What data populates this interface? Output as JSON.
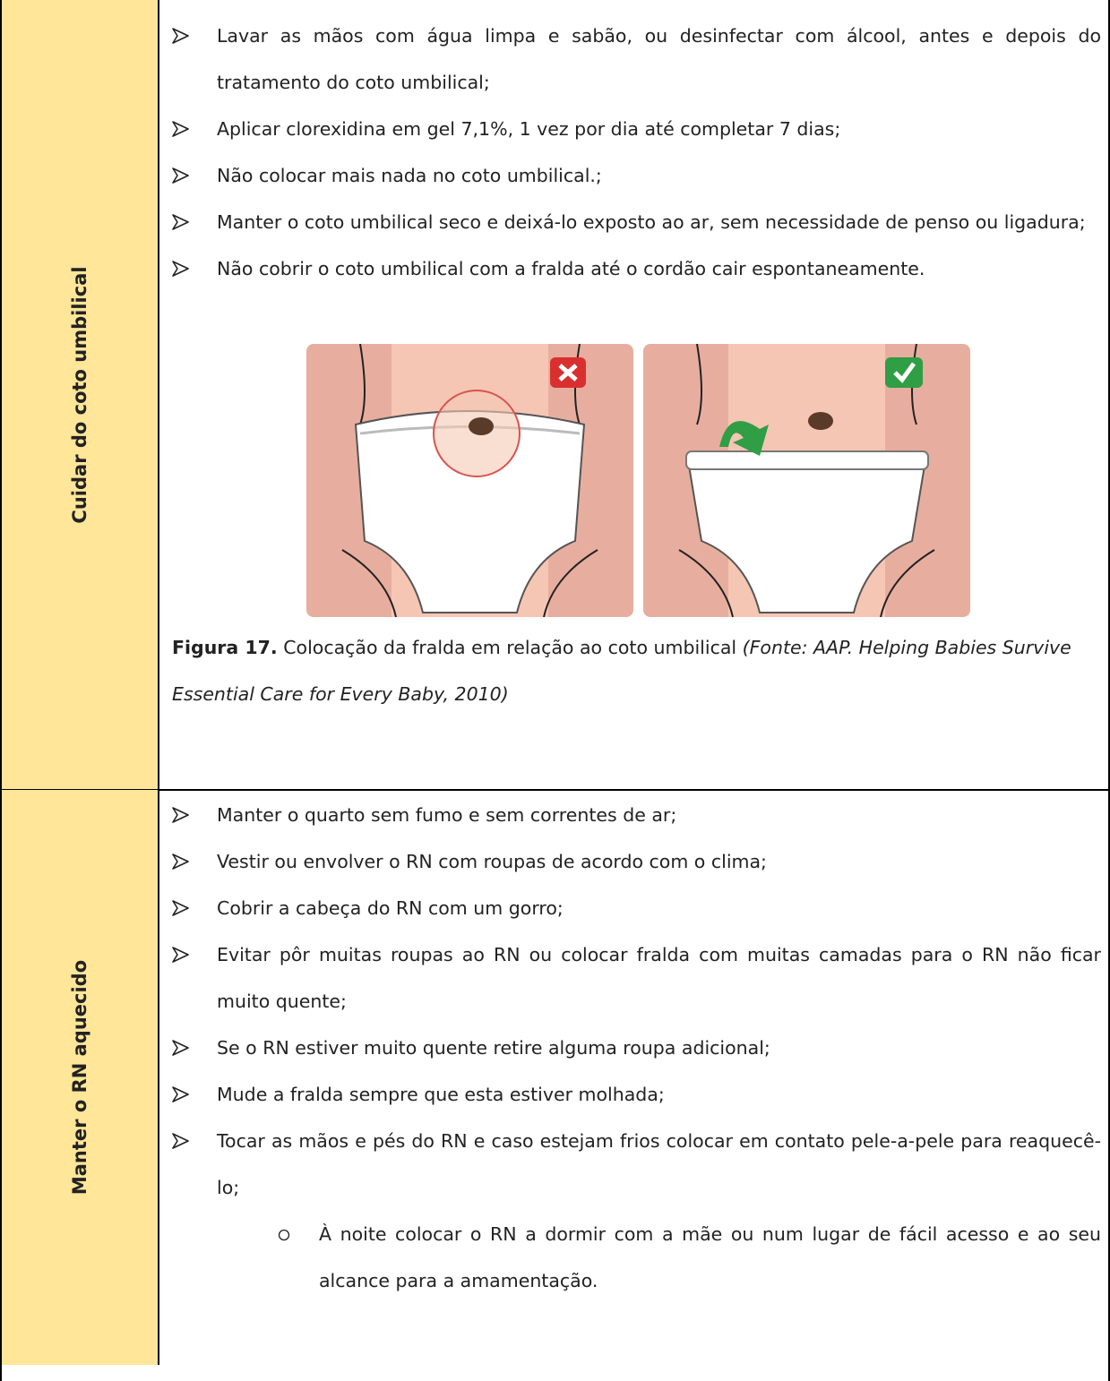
{
  "sections": [
    {
      "label": "Cuidar do coto umbilical",
      "items": [
        {
          "text": "Lavar as mãos com água limpa e sabão, ou desinfectar com álcool, antes e depois do tratamento do coto umbilical;"
        },
        {
          "text": "Aplicar clorexidina em gel 7,1%, 1 vez por dia até completar 7 dias;"
        },
        {
          "text": "Não colocar mais nada no coto umbilical.;"
        },
        {
          "text": "Manter o coto umbilical seco e deixá-lo exposto ao ar, sem necessidade de penso ou ligadura;"
        },
        {
          "text": "Não cobrir o coto umbilical com a fralda até o cordão cair espontaneamente."
        }
      ],
      "figure": {
        "caption_label": "Figura 17.",
        "caption_text": "Colocação da fralda em relação ao coto umbilical",
        "caption_source": "(Fonte: AAP. Helping Babies Survive Essential Care for Every Baby, 2010)"
      }
    },
    {
      "label": "Manter o RN aquecido",
      "items": [
        {
          "text": "Manter o quarto sem fumo e sem correntes de ar;"
        },
        {
          "text": "Vestir ou envolver o RN com roupas de acordo com o clima;"
        },
        {
          "text": "Cobrir a cabeça do RN com um gorro;"
        },
        {
          "text": "Evitar pôr muitas roupas ao RN ou colocar fralda com muitas camadas para o RN não ficar muito quente;"
        },
        {
          "text": "Se o RN estiver muito quente retire alguma roupa adicional;"
        },
        {
          "text": "Mude a fralda sempre que esta estiver molhada;"
        },
        {
          "text": "Tocar as mãos e pés do RN e caso estejam frios colocar em contato pele-a-pele para reaquecê-lo;"
        },
        {
          "text": "À noite colocar o RN a dormir com a mãe ou num lugar de fácil acesso e ao seu alcance para a amamentação.",
          "sub": true
        }
      ]
    }
  ]
}
